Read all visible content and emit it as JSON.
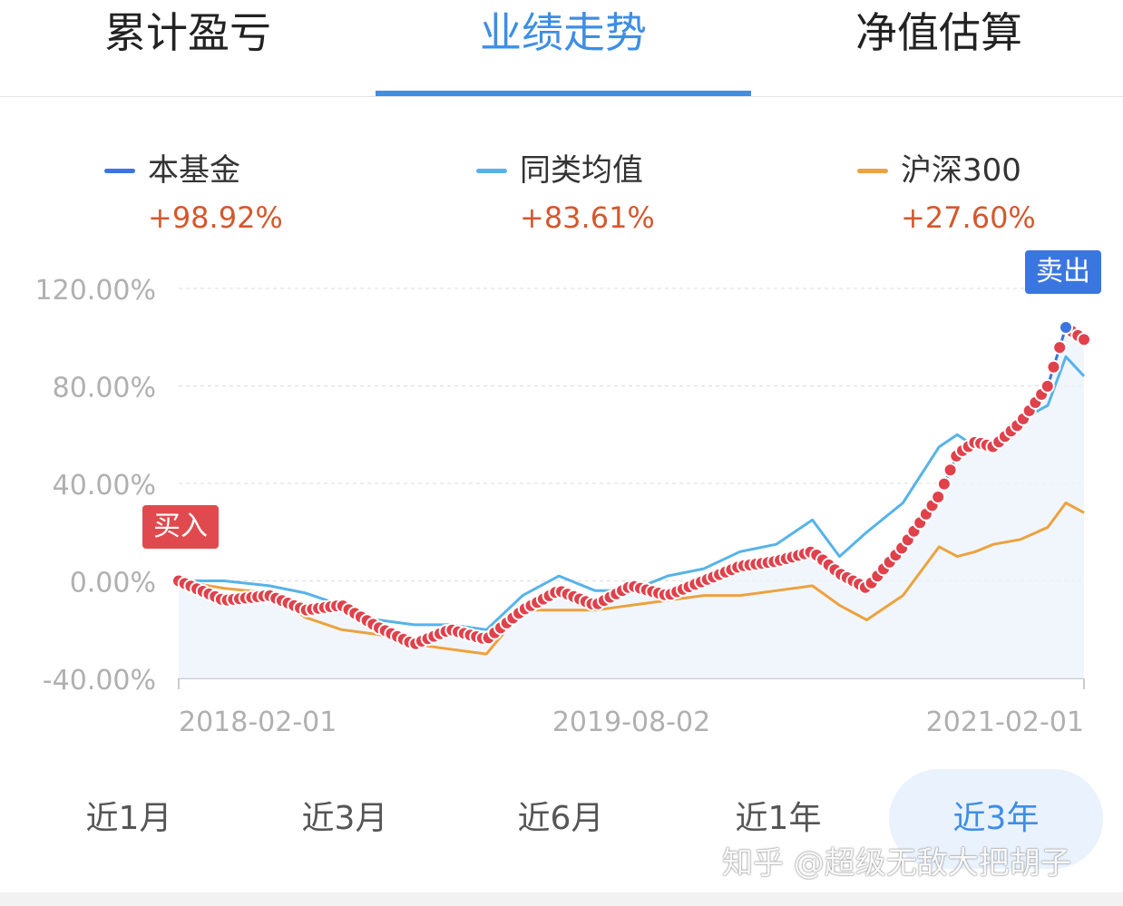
{
  "tabs": [
    {
      "label": "累计盈亏",
      "active": false
    },
    {
      "label": "业绩走势",
      "active": true
    },
    {
      "label": "净值估算",
      "active": false
    }
  ],
  "legend": [
    {
      "name": "本基金",
      "value": "+98.92%",
      "color": "#3b76e0"
    },
    {
      "name": "同类均值",
      "value": "+83.61%",
      "color": "#56b3ea"
    },
    {
      "name": "沪深300",
      "value": "+27.60%",
      "color": "#eda23e"
    }
  ],
  "markers": {
    "buy_label": "买入",
    "sell_label": "卖出",
    "buy_color": "#e04a4f",
    "sell_color": "#3b76e0",
    "dot_color": "#e0414b"
  },
  "ranges": [
    {
      "label": "近1月",
      "active": false
    },
    {
      "label": "近3月",
      "active": false
    },
    {
      "label": "近6月",
      "active": false
    },
    {
      "label": "近1年",
      "active": false
    },
    {
      "label": "近3年",
      "active": true
    }
  ],
  "watermark": "知乎 @超级无敌大把胡子",
  "chart_data": {
    "type": "line",
    "x_tick_labels": [
      "2018-02-01",
      "2019-08-02",
      "2021-02-01"
    ],
    "y_tick_labels": [
      "120.00%",
      "80.00%",
      "40.00%",
      "0.00%",
      "-40.00%"
    ],
    "ylim": [
      -40,
      120
    ],
    "grid": true,
    "legend_position": "top",
    "x_fraction": [
      0,
      0.05,
      0.1,
      0.14,
      0.18,
      0.22,
      0.26,
      0.3,
      0.34,
      0.38,
      0.42,
      0.46,
      0.5,
      0.54,
      0.58,
      0.62,
      0.66,
      0.7,
      0.73,
      0.76,
      0.8,
      0.84,
      0.86,
      0.88,
      0.9,
      0.93,
      0.96,
      0.98,
      1.0
    ],
    "series": [
      {
        "name": "本基金",
        "color": "#3b76e0",
        "values": [
          0,
          -8,
          -6,
          -12,
          -10,
          -19,
          -26,
          -20,
          -24,
          -12,
          -4,
          -10,
          -2,
          -6,
          0,
          6,
          8,
          12,
          3,
          -3,
          14,
          35,
          52,
          57,
          55,
          65,
          80,
          104,
          99
        ]
      },
      {
        "name": "同类均值",
        "color": "#56b3ea",
        "values": [
          0,
          0,
          -2,
          -5,
          -10,
          -16,
          -18,
          -18,
          -20,
          -6,
          2,
          -4,
          -4,
          2,
          5,
          12,
          15,
          25,
          10,
          20,
          32,
          55,
          60,
          55,
          56,
          66,
          72,
          92,
          84
        ]
      },
      {
        "name": "沪深300",
        "color": "#eda23e",
        "values": [
          0,
          -3,
          -5,
          -15,
          -20,
          -22,
          -26,
          -28,
          -30,
          -12,
          -12,
          -12,
          -10,
          -8,
          -6,
          -6,
          -4,
          -2,
          -10,
          -16,
          -6,
          14,
          10,
          12,
          15,
          17,
          22,
          32,
          28
        ]
      }
    ]
  }
}
